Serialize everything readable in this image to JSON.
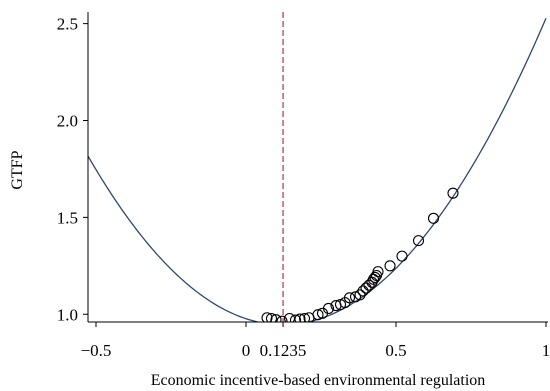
{
  "chart_data": {
    "type": "scatter",
    "xlabel": "Economic incentive-based environmental regulation",
    "ylabel": "GTFP",
    "xlim": [
      -0.55,
      1.0
    ],
    "ylim": [
      0.96,
      2.56
    ],
    "x_ticks": [
      {
        "value": -0.5,
        "label": "−0.5"
      },
      {
        "value": 0,
        "label": "0"
      },
      {
        "value": 0.1235,
        "label": "0.1235"
      },
      {
        "value": 0.5,
        "label": "0.5"
      },
      {
        "value": 1,
        "label": "1"
      }
    ],
    "y_ticks": [
      {
        "value": 1.0,
        "label": "1.0"
      },
      {
        "value": 1.5,
        "label": "1.5"
      },
      {
        "value": 2.0,
        "label": "2.0"
      },
      {
        "value": 2.5,
        "label": "2.5"
      }
    ],
    "fitted_curve": {
      "a": 2.06,
      "b": -0.509,
      "c": 0.977,
      "color": "#2d4a6b"
    },
    "threshold": {
      "x": 0.1235,
      "color": "#b03060"
    },
    "points": [
      {
        "x": 0.07,
        "y": 0.982
      },
      {
        "x": 0.085,
        "y": 0.978
      },
      {
        "x": 0.1,
        "y": 0.972
      },
      {
        "x": 0.12,
        "y": 0.964
      },
      {
        "x": 0.145,
        "y": 0.978
      },
      {
        "x": 0.165,
        "y": 0.97
      },
      {
        "x": 0.18,
        "y": 0.975
      },
      {
        "x": 0.195,
        "y": 0.978
      },
      {
        "x": 0.21,
        "y": 0.982
      },
      {
        "x": 0.24,
        "y": 0.998
      },
      {
        "x": 0.255,
        "y": 1.005
      },
      {
        "x": 0.275,
        "y": 1.03
      },
      {
        "x": 0.3,
        "y": 1.045
      },
      {
        "x": 0.315,
        "y": 1.05
      },
      {
        "x": 0.33,
        "y": 1.06
      },
      {
        "x": 0.345,
        "y": 1.085
      },
      {
        "x": 0.365,
        "y": 1.09
      },
      {
        "x": 0.38,
        "y": 1.1
      },
      {
        "x": 0.39,
        "y": 1.12
      },
      {
        "x": 0.4,
        "y": 1.135
      },
      {
        "x": 0.41,
        "y": 1.15
      },
      {
        "x": 0.42,
        "y": 1.165
      },
      {
        "x": 0.425,
        "y": 1.18
      },
      {
        "x": 0.43,
        "y": 1.19
      },
      {
        "x": 0.435,
        "y": 1.2
      },
      {
        "x": 0.44,
        "y": 1.22
      },
      {
        "x": 0.48,
        "y": 1.25
      },
      {
        "x": 0.52,
        "y": 1.3
      },
      {
        "x": 0.575,
        "y": 1.38
      },
      {
        "x": 0.625,
        "y": 1.495
      },
      {
        "x": 0.69,
        "y": 1.625
      }
    ]
  }
}
